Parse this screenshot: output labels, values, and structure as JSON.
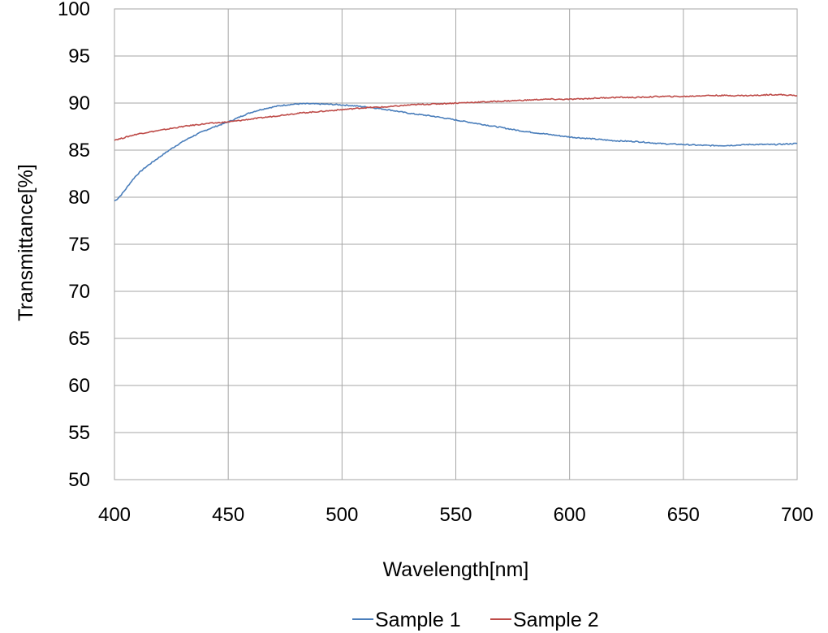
{
  "chart_data": {
    "type": "line",
    "title": "",
    "xlabel": "Wavelength[nm]",
    "ylabel": "Transmittance[%]",
    "xlim": [
      400,
      700
    ],
    "ylim": [
      50,
      100
    ],
    "xticks": [
      400,
      450,
      500,
      550,
      600,
      650,
      700
    ],
    "yticks": [
      50,
      55,
      60,
      65,
      70,
      75,
      80,
      85,
      90,
      95,
      100
    ],
    "grid": true,
    "legend_position": "bottom",
    "x": [
      400,
      410,
      420,
      430,
      440,
      450,
      460,
      470,
      480,
      490,
      500,
      510,
      520,
      530,
      540,
      550,
      560,
      570,
      580,
      590,
      600,
      610,
      620,
      630,
      640,
      650,
      660,
      670,
      680,
      690,
      700
    ],
    "series": [
      {
        "name": "Sample 1",
        "color": "#4a7ebb",
        "values": [
          79.6,
          82.4,
          84.3,
          85.9,
          87.1,
          88.0,
          89.0,
          89.6,
          89.9,
          89.9,
          89.8,
          89.6,
          89.3,
          88.9,
          88.6,
          88.2,
          87.8,
          87.4,
          87.0,
          86.7,
          86.4,
          86.2,
          86.0,
          85.9,
          85.7,
          85.6,
          85.5,
          85.5,
          85.6,
          85.6,
          85.7
        ]
      },
      {
        "name": "Sample 2",
        "color": "#be4b48",
        "values": [
          86.1,
          86.7,
          87.1,
          87.5,
          87.8,
          88.0,
          88.3,
          88.6,
          88.9,
          89.1,
          89.3,
          89.5,
          89.6,
          89.8,
          89.9,
          90.0,
          90.1,
          90.2,
          90.3,
          90.4,
          90.4,
          90.5,
          90.6,
          90.6,
          90.7,
          90.7,
          90.8,
          90.8,
          90.8,
          90.9,
          90.8
        ]
      }
    ]
  }
}
